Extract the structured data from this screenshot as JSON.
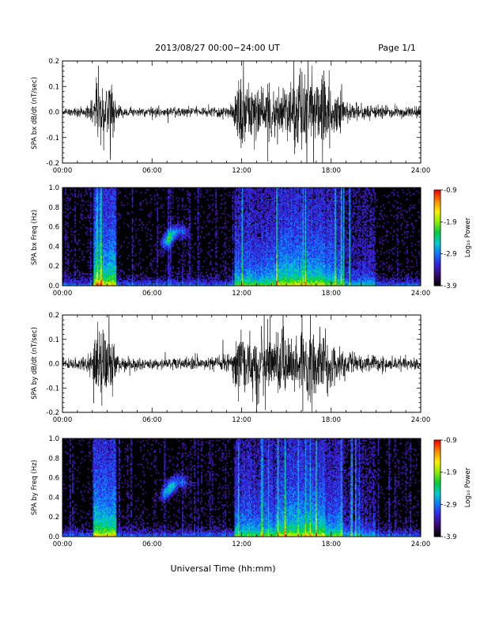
{
  "header": {
    "title": "2013/08/27  00:00−24:00 UT",
    "page_label": "Page 1/1"
  },
  "footer": {
    "xlabel": "Universal Time (hh:mm)"
  },
  "colorbar": {
    "label": "Log₁₀ Power",
    "ticks": [
      "-0.9",
      "-1.9",
      "-2.9",
      "-3.9"
    ],
    "range": [
      -3.9,
      -0.9
    ],
    "colors": [
      "#000000",
      "#3a0a6e",
      "#3322dd",
      "#1177ff",
      "#00cccc",
      "#00cc44",
      "#88ee00",
      "#ffee00",
      "#ff8800",
      "#ff0000"
    ]
  },
  "chart_data": [
    {
      "type": "line",
      "ylabel": "SPA bx dB/dt (nT/sec)",
      "xlim": [
        0,
        24
      ],
      "ylim": [
        -0.2,
        0.2
      ],
      "xticks": [
        "00:00",
        "06:00",
        "12:00",
        "18:00",
        "24:00"
      ],
      "yticks": [
        "-0.2",
        "-0.1",
        "0.0",
        "0.1",
        "0.2"
      ],
      "envelope": {
        "x": [
          0.0,
          1.5,
          2.1,
          2.3,
          3.3,
          3.6,
          4.2,
          6.0,
          9.0,
          10.5,
          11.4,
          11.8,
          12.3,
          13.0,
          14.5,
          15.5,
          16.0,
          17.3,
          18.2,
          18.8,
          20.0,
          22.0,
          24.0
        ],
        "amp": [
          0.025,
          0.03,
          0.08,
          0.25,
          0.25,
          0.05,
          0.035,
          0.03,
          0.03,
          0.035,
          0.05,
          0.25,
          0.25,
          0.2,
          0.18,
          0.22,
          0.25,
          0.25,
          0.16,
          0.08,
          0.05,
          0.04,
          0.035
        ]
      }
    },
    {
      "type": "heatmap",
      "ylabel": "SPA bx Freq (Hz)",
      "xlim": [
        0,
        24
      ],
      "ylim": [
        0.0,
        1.0
      ],
      "xticks": [
        "00:00",
        "06:00",
        "12:00",
        "18:00",
        "24:00"
      ],
      "yticks": [
        "0.0",
        "0.2",
        "0.4",
        "0.6",
        "0.8",
        "1.0"
      ],
      "colorbar_label": "Log₁₀ Power"
    },
    {
      "type": "line",
      "ylabel": "SPA by dB/dt (nT/sec)",
      "xlim": [
        0,
        24
      ],
      "ylim": [
        -0.2,
        0.2
      ],
      "xticks": [
        "00:00",
        "06:00",
        "12:00",
        "18:00",
        "24:00"
      ],
      "yticks": [
        "-0.2",
        "-0.1",
        "0.0",
        "0.1",
        "0.2"
      ],
      "envelope": {
        "x": [
          0.0,
          1.5,
          2.0,
          2.3,
          3.2,
          3.6,
          4.2,
          6.0,
          9.0,
          10.5,
          11.2,
          11.8,
          12.5,
          13.5,
          15.0,
          16.0,
          17.2,
          18.3,
          18.8,
          20.0,
          22.0,
          24.0
        ],
        "amp": [
          0.035,
          0.04,
          0.12,
          0.25,
          0.25,
          0.07,
          0.05,
          0.04,
          0.04,
          0.045,
          0.08,
          0.25,
          0.2,
          0.25,
          0.22,
          0.25,
          0.25,
          0.14,
          0.1,
          0.06,
          0.05,
          0.045
        ]
      }
    },
    {
      "type": "heatmap",
      "ylabel": "SPA by Freq (Hz)",
      "xlim": [
        0,
        24
      ],
      "ylim": [
        0.0,
        1.0
      ],
      "xticks": [
        "00:00",
        "06:00",
        "12:00",
        "18:00",
        "24:00"
      ],
      "yticks": [
        "0.0",
        "0.2",
        "0.4",
        "0.6",
        "0.8",
        "1.0"
      ],
      "colorbar_label": "Log₁₀ Power"
    }
  ]
}
